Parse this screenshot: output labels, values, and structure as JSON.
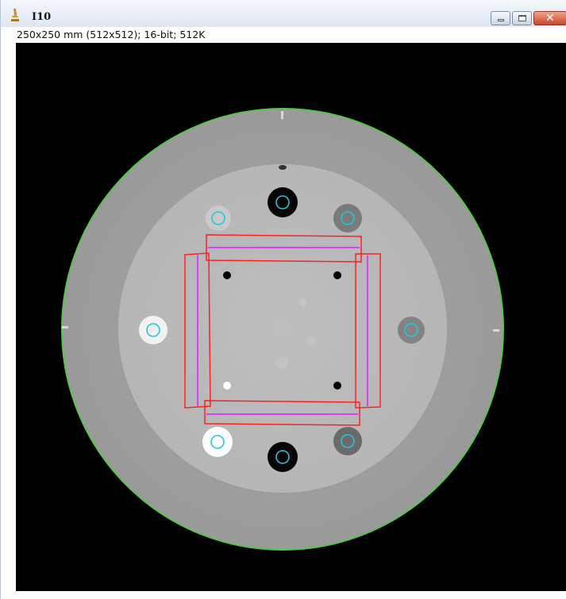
{
  "window": {
    "title": "I10",
    "info": "250x250 mm (512x512); 16-bit; 512K"
  },
  "controls": {
    "minimize": "minimize",
    "maximize": "maximize",
    "close": "close",
    "close_glyph": "✕"
  },
  "icons": {
    "app": "imagej-microscope-icon"
  },
  "colors": {
    "phantom_outline": "#56c64a",
    "roi_red": "#ff2020",
    "roi_magenta": "#d640ff",
    "roi_cyan": "#22c8d8",
    "background": "#000000"
  }
}
